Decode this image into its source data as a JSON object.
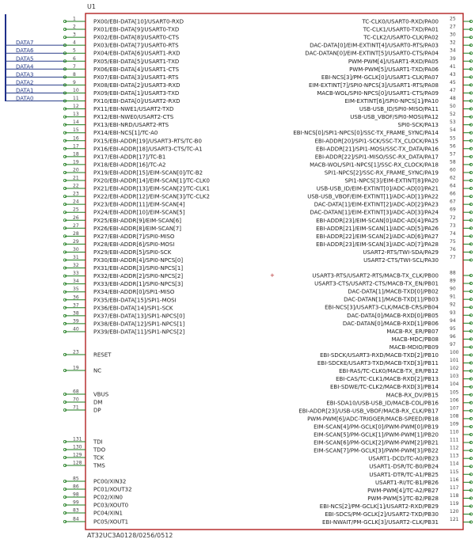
{
  "component": {
    "ref": "U1",
    "part": "AT32UC3A0128/0256/0512",
    "center_mark": "+"
  },
  "bus_labels": [
    "DATA7",
    "DATA6",
    "DATA5",
    "DATA4",
    "DATA3",
    "DATA2",
    "DATA1",
    "DATA0"
  ],
  "left_pins": [
    {
      "num": "1",
      "name": "PX00/EBI-DATA[10]/USART0-RXD"
    },
    {
      "num": "2",
      "name": "PX01/EBI-DATA[9]/USART0-TXD"
    },
    {
      "num": "3",
      "name": "PX02/EBI-DATA[8]/USART0-CTS"
    },
    {
      "num": "4",
      "name": "PX03/EBI-DATA[7]/USART0-RTS"
    },
    {
      "num": "5",
      "name": "PX04/EBI-DATA[6]/USART1-RXD"
    },
    {
      "num": "6",
      "name": "PX05/EBI-DATA[5]/USART1-TXD"
    },
    {
      "num": "7",
      "name": "PX06/EBI-DATA[4]/USART1-CTS"
    },
    {
      "num": "8",
      "name": "PX07/EBI-DATA[3]/USART1-RTS"
    },
    {
      "num": "9",
      "name": "PX08/EBI-DATA[2]/USART3-RXD"
    },
    {
      "num": "10",
      "name": "PX09/EBI-DATA[1]/USART3-TXD"
    },
    {
      "num": "11",
      "name": "PX10/EBI-DATA[0]/USART2-RXD"
    },
    {
      "num": "12",
      "name": "PX11/EBI-NWE1/USART2-TXD"
    },
    {
      "num": "13",
      "name": "PX12/EBI-NWE0/USART2-CTS"
    },
    {
      "num": "14",
      "name": "PX13/EBI-NRD/USART2-RTS"
    },
    {
      "num": "15",
      "name": "PX14/EBI-NCS[1]/TC-A0"
    },
    {
      "num": "16",
      "name": "PX15/EBI-ADDR[19]/USART3-RTS/TC-B0"
    },
    {
      "num": "17",
      "name": "PX16/EBI-ADDR[18]/USART3-CTS/TC-A1"
    },
    {
      "num": "18",
      "name": "PX17/EBI-ADDR[17]/TC-B1"
    },
    {
      "num": "19",
      "name": "PX18/EBI-ADDR[16]/TC-A2"
    },
    {
      "num": "20",
      "name": "PX19/EBI-ADDR[15]/EIM-SCAN[0]/TC-B2"
    },
    {
      "num": "21",
      "name": "PX20/EBI-ADDR[14]/EIM-SCAN[1]/TC-CLK0"
    },
    {
      "num": "22",
      "name": "PX21/EBI-ADDR[13]/EIM-SCAN[2]/TC-CLK1"
    },
    {
      "num": "23",
      "name": "PX22/EBI-ADDR[12]/EIM-SCAN[3]/TC-CLK2"
    },
    {
      "num": "24",
      "name": "PX23/EBI-ADDR[11]/EIM-SCAN[4]"
    },
    {
      "num": "25",
      "name": "PX24/EBI-ADDR[10]/EIM-SCAN[5]"
    },
    {
      "num": "26",
      "name": "PX25/EBI-ADDR[9]/EIM-SCAN[6]"
    },
    {
      "num": "27",
      "name": "PX26/EBI-ADDR[8]/EIM-SCAN[7]"
    },
    {
      "num": "28",
      "name": "PX27/EBI-ADDR[7]/SPI0-MISO"
    },
    {
      "num": "29",
      "name": "PX28/EBI-ADDR[6]/SPI0-MOSI"
    },
    {
      "num": "30",
      "name": "PX29/EBI-ADDR[5]/SPI0-SCK"
    },
    {
      "num": "31",
      "name": "PX30/EBI-ADDR[4]/SPI0-NPCS[0]"
    },
    {
      "num": "32",
      "name": "PX31/EBI-ADDR[3]/SPI0-NPCS[1]"
    },
    {
      "num": "33",
      "name": "PX32/EBI-ADDR[2]/SPI0-NPCS[2]"
    },
    {
      "num": "34",
      "name": "PX33/EBI-ADDR[1]/SPI0-NPCS[3]"
    },
    {
      "num": "35",
      "name": "PX34/EBI-ADDR[0]/SPI1-MISO"
    },
    {
      "num": "36",
      "name": "PX35/EBI-DATA[15]/SPI1-MOSI"
    },
    {
      "num": "37",
      "name": "PX36/EBI-DATA[14]/SPI1-SCK"
    },
    {
      "num": "38",
      "name": "PX37/EBI-DATA[13]/SPI1-NPCS[0]"
    },
    {
      "num": "39",
      "name": "PX38/EBI-DATA[12]/SPI1-NPCS[1]"
    },
    {
      "num": "40",
      "name": "PX39/EBI-DATA[11]/SPI1-NPCS[2]"
    },
    {
      "num": "23",
      "name": "RESET"
    },
    {
      "num": "19",
      "name": "NC"
    },
    {
      "num": "68",
      "name": "VBUS"
    },
    {
      "num": "70",
      "name": "DM"
    },
    {
      "num": "71",
      "name": "DP"
    },
    {
      "num": "131",
      "name": "TDI"
    },
    {
      "num": "130",
      "name": "TDO"
    },
    {
      "num": "129",
      "name": "TCK"
    },
    {
      "num": "128",
      "name": "TMS"
    },
    {
      "num": "85",
      "name": "PC00/XIN32"
    },
    {
      "num": "86",
      "name": "PC01/XOUT32"
    },
    {
      "num": "98",
      "name": "PC02/XIN0"
    },
    {
      "num": "99",
      "name": "PC03/XOUT0"
    },
    {
      "num": "83",
      "name": "PC04/XIN1"
    },
    {
      "num": "84",
      "name": "PC05/XOUT1"
    }
  ],
  "right_pins": [
    {
      "num": "25",
      "name": "TC-CLK0/USART0-RXD/PA00"
    },
    {
      "num": "27",
      "name": "TC-CLK1/USART0-TXD/PA01"
    },
    {
      "num": "30",
      "name": "TC-CLK2/USART0-CLK/PA02"
    },
    {
      "num": "32",
      "name": "DAC-DATA[0]/EIM-EXTINT[4]/USART0-RTS/PA03"
    },
    {
      "num": "34",
      "name": "DAC-DATAN[0]/EIM-EXTINT[5]/USART0-CTS/PA04"
    },
    {
      "num": "39",
      "name": "PWM-PWM[4]/USART1-RXD/PA05"
    },
    {
      "num": "41",
      "name": "PWM-PWM[5]/USART1-TXD/PA06"
    },
    {
      "num": "43",
      "name": "EBI-NCS[3]/PM-GCLK[0]/USART1-CLK/PA07"
    },
    {
      "num": "45",
      "name": "EIM-EXTINT[7]/SPI0-NPCS[3]/USART1-RTS/PA08"
    },
    {
      "num": "47",
      "name": "MACB-WOL/SPI0-NPCS[0]/USART1-CTS/PA09"
    },
    {
      "num": "48",
      "name": "EIM-EXTINT[6]/SPI0-NPCS[1]/PA10"
    },
    {
      "num": "50",
      "name": "USB-USB_ID/SPI0-MISO/PA11"
    },
    {
      "num": "52",
      "name": "USB-USB_VBOF/SPI0-MOSI/PA12"
    },
    {
      "num": "53",
      "name": "SPI0-SCK/PA13"
    },
    {
      "num": "54",
      "name": "EBI-NCS[0]/SPI1-NPCS[0]/SSC-TX_FRAME_SYNC/PA14"
    },
    {
      "num": "55",
      "name": "EBI-ADDR[20]/SPI1-SCK/SSC-TX_CLOCK/PA15"
    },
    {
      "num": "56",
      "name": "EBI-ADDR[21]/SPI1-MOSI/SSC-TX_DATA/PA16"
    },
    {
      "num": "57",
      "name": "EBI-ADDR[22]/SPI1-MISO/SSC-RX_DATA/PA17"
    },
    {
      "num": "58",
      "name": "MACB-WOL/SPI1-NPCS[1]/SSC-RX_CLOCK/PA18"
    },
    {
      "num": "60",
      "name": "SPI1-NPCS[2]/SSC-RX_FRAME_SYNC/PA19"
    },
    {
      "num": "62",
      "name": "SPI1-NPCS[3]/EIM-EXTINT[8]/PA20"
    },
    {
      "num": "64",
      "name": "USB-USB_ID/EIM-EXTINT[0]/ADC-AD[0]/PA21"
    },
    {
      "num": "66",
      "name": "USB-USB_VBOF/EIM-EXTINT[1]/ADC-AD[1]/PA22"
    },
    {
      "num": "67",
      "name": "DAC-DATA[1]/EIM-EXTINT[2]/ADC-AD[2]/PA23"
    },
    {
      "num": "69",
      "name": "DAC-DATAN[1]/EIM-EXTINT[3]/ADC-AD[3]/PA24"
    },
    {
      "num": "72",
      "name": "EBI-ADDR[23]/EIM-SCAN[0]/ADC-AD[4]/PA25"
    },
    {
      "num": "73",
      "name": "EBI-ADDR[21]/EIM-SCAN[1]/ADC-AD[5]/PA26"
    },
    {
      "num": "74",
      "name": "EBI-ADDR[22]/EIM-SCAN[2]/ADC-AD[6]/PA27"
    },
    {
      "num": "75",
      "name": "EBI-ADDR[23]/EIM-SCAN[3]/ADC-AD[7]/PA28"
    },
    {
      "num": "76",
      "name": "USART2-RTS/TWI-SDA/PA29"
    },
    {
      "num": "77",
      "name": "USART2-CTS/TWI-SCL/PA30"
    },
    {
      "num": "88",
      "name": "USART3-RTS/USART2-RTS/MACB-TX_CLK/PB00"
    },
    {
      "num": "89",
      "name": "USART3-CTS/USART2-CTS/MACB-TX_EN/PB01"
    },
    {
      "num": "90",
      "name": "DAC-DATA[1]/MACB-TXD[0]/PB02"
    },
    {
      "num": "91",
      "name": "DAC-DATAN[1]/MACB-TXD[1]/PB03"
    },
    {
      "num": "92",
      "name": "EBI-NCS[3]/USART3-CLK/MACB-CRS/PB04"
    },
    {
      "num": "93",
      "name": "DAC-DATA[0]/MACB-RXD[0]/PB05"
    },
    {
      "num": "94",
      "name": "DAC-DATAN[0]/MACB-RXD[1]/PB06"
    },
    {
      "num": "95",
      "name": "MACB-RX_ER/PB07"
    },
    {
      "num": "96",
      "name": "MACB-MDC/PB08"
    },
    {
      "num": "97",
      "name": "MACB-MDIO/PB09"
    },
    {
      "num": "100",
      "name": "EBI-SDCK/USART3-RXD/MACB-TXD[2]/PB10"
    },
    {
      "num": "101",
      "name": "EBI-SDCKE/USART3-TXD/MACB-TXD[3]/PB11"
    },
    {
      "num": "102",
      "name": "EBI-RAS/TC-CLK0/MACB-TX_ER/PB12"
    },
    {
      "num": "103",
      "name": "EBI-CAS/TC-CLK1/MACB-RXD[2]/PB13"
    },
    {
      "num": "104",
      "name": "EBI-SDWE/TC-CLK2/MACB-RXD[3]/PB14"
    },
    {
      "num": "105",
      "name": "MACB-RX_DV/PB15"
    },
    {
      "num": "106",
      "name": "EBI-SDA10/USB-USB_ID/MACB-COL/PB16"
    },
    {
      "num": "107",
      "name": "EBI-ADDR[23]/USB-USB_VBOF/MACB-RX_CLK/PB17"
    },
    {
      "num": "108",
      "name": "PWM-PWM[6]/ADC-TRIGGER/MACB-SPEED/PB18"
    },
    {
      "num": "109",
      "name": "EIM-SCAN[4]/PM-GCLK[0]/PWM-PWM[0]/PB19"
    },
    {
      "num": "110",
      "name": "EIM-SCAN[5]/PM-GCLK[1]/PWM-PWM[1]/PB20"
    },
    {
      "num": "111",
      "name": "EIM-SCAN[6]/PM-GCLK[2]/PWM-PWM[2]/PB21"
    },
    {
      "num": "112",
      "name": "EIM-SCAN[7]/PM-GCLK[3]/PWM-PWM[3]/PB22"
    },
    {
      "num": "113",
      "name": "USART1-DCD/TC-A0/PB23"
    },
    {
      "num": "114",
      "name": "USART1-DSR/TC-B0/PB24"
    },
    {
      "num": "115",
      "name": "USART1-DTR/TC-A1/PB25"
    },
    {
      "num": "116",
      "name": "USART1-RI/TC-B1/PB26"
    },
    {
      "num": "117",
      "name": "PWM-PWM[4]/TC-A2/PB27"
    },
    {
      "num": "118",
      "name": "PWM-PWM[5]/TC-B2/PB28"
    },
    {
      "num": "119",
      "name": "EBI-NCS[2]/PM-GCLK[1]/USART2-RXD/PB29"
    },
    {
      "num": "120",
      "name": "EBI-SDCS/PM-GCLK[2]/USART2-TXD/PB30"
    },
    {
      "num": "121",
      "name": "EBI-NWAIT/PM-GCLK[3]/USART2-CLK/PB31"
    }
  ]
}
